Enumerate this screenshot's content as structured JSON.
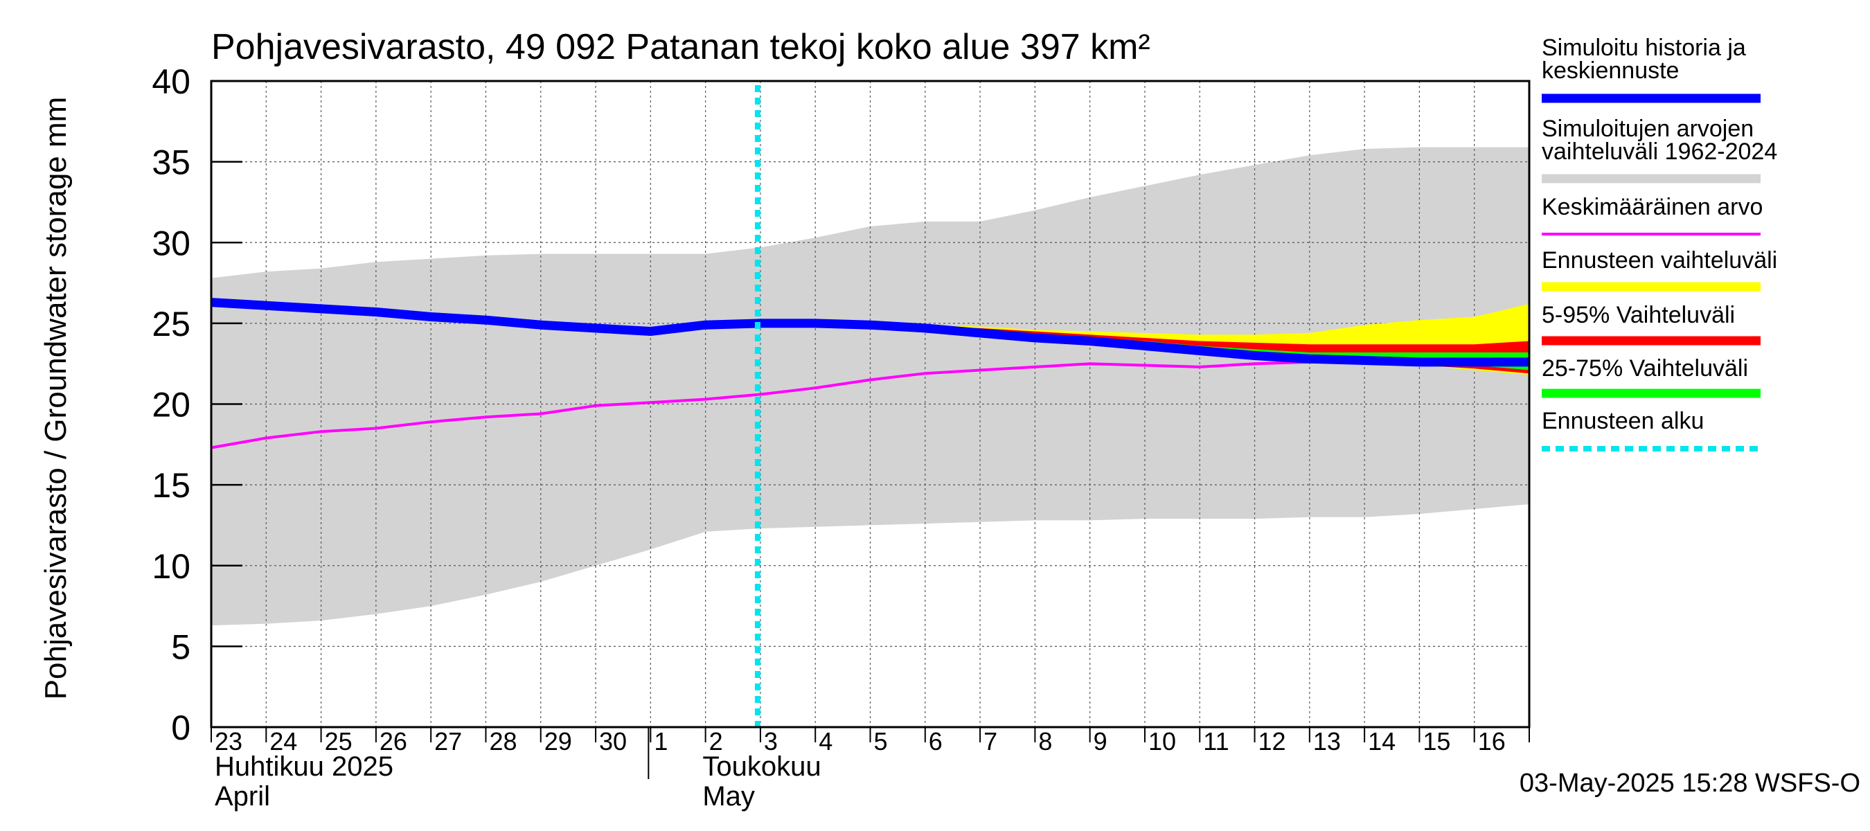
{
  "chart_data": {
    "type": "area",
    "title": "Pohjavesivarasto, 49 092 Patanan tekoj koko alue 397 km²",
    "ylabel": "Pohjavesivarasto / Groundwater storage   mm",
    "ylim": [
      0,
      40
    ],
    "yticks": [
      0,
      5,
      10,
      15,
      20,
      25,
      30,
      35,
      40
    ],
    "x_days": [
      "23",
      "24",
      "25",
      "26",
      "27",
      "28",
      "29",
      "30",
      "1",
      "2",
      "3",
      "4",
      "5",
      "6",
      "7",
      "8",
      "9",
      "10",
      "11",
      "12",
      "13",
      "14",
      "15",
      "16"
    ],
    "month_labels": [
      {
        "fi": "Huhtikuu  2025",
        "en": "April"
      },
      {
        "fi": "Toukokuu",
        "en": "May"
      }
    ],
    "forecast_start_day_index": 10,
    "grid": true,
    "timestamp": "03-May-2025 15:28 WSFS-O",
    "legend": {
      "placement": "right",
      "items": [
        {
          "label": "Simuloitu historia ja keskiennuste",
          "color": "#0000ff",
          "style": "thick"
        },
        {
          "label": "Simuloitujen arvojen vaihteluväli 1962-2024",
          "color": "#d3d3d3",
          "style": "thick"
        },
        {
          "label": "Keskimääräinen arvo",
          "color": "#ff00ff",
          "style": "thin"
        },
        {
          "label": "Ennusteen vaihteluväli",
          "color": "#ffff00",
          "style": "thick"
        },
        {
          "label": "5-95% Vaihteluväli",
          "color": "#ff0000",
          "style": "thick"
        },
        {
          "label": "25-75% Vaihteluväli",
          "color": "#00ff00",
          "style": "thick"
        },
        {
          "label": "Ennusteen alku",
          "color": "#00e5ee",
          "style": "dotted"
        }
      ]
    },
    "series": [
      {
        "name": "range_max",
        "x": [
          0,
          1,
          2,
          3,
          4,
          5,
          6,
          7,
          8,
          9,
          10,
          11,
          12,
          13,
          14,
          15,
          16,
          17,
          18,
          19,
          20,
          21,
          22,
          23,
          24
        ],
        "values": [
          27.8,
          28.2,
          28.4,
          28.8,
          29.0,
          29.2,
          29.3,
          29.3,
          29.3,
          29.3,
          29.7,
          30.3,
          31.0,
          31.3,
          31.3,
          32.0,
          32.8,
          33.5,
          34.2,
          34.8,
          35.4,
          35.8,
          35.9,
          35.9,
          35.9
        ]
      },
      {
        "name": "range_min",
        "x": [
          0,
          1,
          2,
          3,
          4,
          5,
          6,
          7,
          8,
          9,
          10,
          11,
          12,
          13,
          14,
          15,
          16,
          17,
          18,
          19,
          20,
          21,
          22,
          23,
          24
        ],
        "values": [
          6.3,
          6.4,
          6.6,
          7.0,
          7.5,
          8.2,
          9.0,
          10.0,
          11.0,
          12.1,
          12.3,
          12.4,
          12.5,
          12.6,
          12.7,
          12.8,
          12.8,
          12.9,
          12.9,
          12.9,
          13.0,
          13.0,
          13.2,
          13.5,
          13.8
        ]
      },
      {
        "name": "Ennusteen vaihteluväli max",
        "x": [
          13,
          14,
          15,
          16,
          17,
          18,
          19,
          20,
          21,
          22,
          23,
          24
        ],
        "values": [
          24.9,
          24.8,
          24.6,
          24.5,
          24.4,
          24.3,
          24.3,
          24.4,
          24.9,
          25.2,
          25.4,
          26.2
        ]
      },
      {
        "name": "Ennusteen vaihteluväli min",
        "x": [
          13,
          14,
          15,
          16,
          17,
          18,
          19,
          20,
          21,
          22,
          23,
          24
        ],
        "values": [
          24.7,
          24.5,
          24.2,
          24.0,
          23.8,
          23.5,
          23.2,
          22.9,
          22.7,
          22.4,
          22.1,
          21.8
        ]
      },
      {
        "name": "5-95% max",
        "x": [
          13,
          14,
          15,
          16,
          17,
          18,
          19,
          20,
          21,
          22,
          23,
          24
        ],
        "values": [
          24.8,
          24.7,
          24.5,
          24.3,
          24.1,
          23.9,
          23.8,
          23.7,
          23.7,
          23.7,
          23.7,
          23.9
        ]
      },
      {
        "name": "5-95% min",
        "x": [
          13,
          14,
          15,
          16,
          17,
          18,
          19,
          20,
          21,
          22,
          23,
          24
        ],
        "values": [
          24.7,
          24.5,
          24.2,
          24.0,
          23.8,
          23.5,
          23.2,
          22.9,
          22.7,
          22.4,
          22.2,
          21.9
        ]
      },
      {
        "name": "25-75% max",
        "x": [
          13,
          14,
          15,
          16,
          17,
          18,
          19,
          20,
          21,
          22,
          23,
          24
        ],
        "values": [
          24.7,
          24.5,
          24.3,
          24.1,
          23.9,
          23.6,
          23.4,
          23.2,
          23.2,
          23.2,
          23.2,
          23.2
        ]
      },
      {
        "name": "25-75% min",
        "x": [
          13,
          14,
          15,
          16,
          17,
          18,
          19,
          20,
          21,
          22,
          23,
          24
        ],
        "values": [
          24.7,
          24.5,
          24.2,
          24.0,
          23.8,
          23.5,
          23.2,
          23.0,
          22.8,
          22.6,
          22.4,
          22.1
        ]
      },
      {
        "name": "Keskimääräinen arvo",
        "x": [
          0,
          1,
          2,
          3,
          4,
          5,
          6,
          7,
          8,
          9,
          10,
          11,
          12,
          13,
          14,
          15,
          16,
          17,
          18,
          19,
          20,
          21,
          22,
          23,
          24
        ],
        "values": [
          17.3,
          17.9,
          18.3,
          18.5,
          18.9,
          19.2,
          19.4,
          19.9,
          20.1,
          20.3,
          20.6,
          21.0,
          21.5,
          21.9,
          22.1,
          22.3,
          22.5,
          22.4,
          22.3,
          22.5,
          22.6,
          22.7,
          22.7,
          22.7,
          22.7
        ]
      },
      {
        "name": "Simuloitu historia ja keskiennuste",
        "x": [
          0,
          1,
          2,
          3,
          4,
          5,
          6,
          7,
          8,
          9,
          10,
          11,
          12,
          13,
          14,
          15,
          16,
          17,
          18,
          19,
          20,
          21,
          22,
          23,
          24
        ],
        "values": [
          26.3,
          26.1,
          25.9,
          25.7,
          25.4,
          25.2,
          24.9,
          24.7,
          24.5,
          24.9,
          25.0,
          25.0,
          24.9,
          24.7,
          24.4,
          24.1,
          23.9,
          23.6,
          23.3,
          23.0,
          22.8,
          22.7,
          22.6,
          22.6,
          22.6
        ]
      }
    ]
  }
}
